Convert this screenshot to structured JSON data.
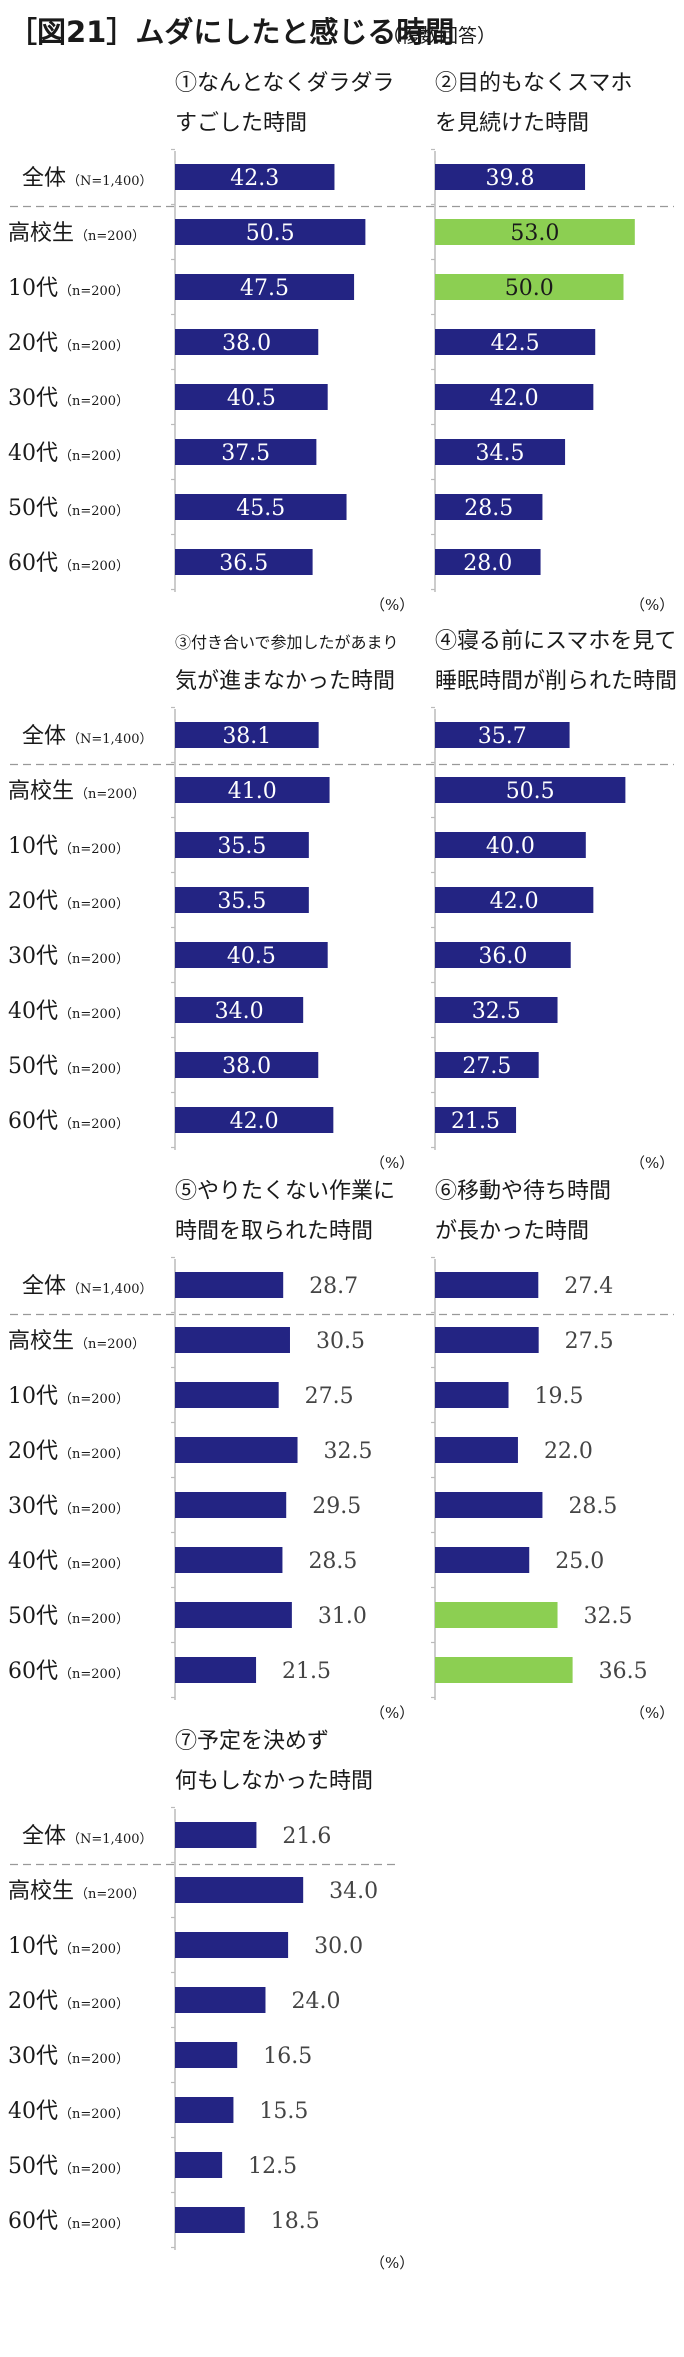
{
  "header": {
    "title": "［図21］ムダにしたと感じる時間",
    "subtitle": "（複数回答）"
  },
  "colors": {
    "bar": "#232483",
    "highlight": "#8CCF52",
    "axis": "#bbbbbb",
    "divider": "#999999"
  },
  "unit_label": "（%）",
  "categories": [
    {
      "main": "全体",
      "n": "（N=1,400）"
    },
    {
      "main": "高校生",
      "n": "（n=200）"
    },
    {
      "main": "10代",
      "n": "（n=200）"
    },
    {
      "main": "20代",
      "n": "（n=200）"
    },
    {
      "main": "30代",
      "n": "（n=200）"
    },
    {
      "main": "40代",
      "n": "（n=200）"
    },
    {
      "main": "50代",
      "n": "（n=200）"
    },
    {
      "main": "60代",
      "n": "（n=200）"
    }
  ],
  "chart_data": [
    {
      "type": "bar",
      "title_lines": [
        "①なんとなくダラダラ",
        "すごした時間"
      ],
      "categories": [
        "全体",
        "高校生",
        "10代",
        "20代",
        "30代",
        "40代",
        "50代",
        "60代"
      ],
      "values": [
        42.3,
        50.5,
        47.5,
        38.0,
        40.5,
        37.5,
        45.5,
        36.5
      ],
      "labels": [
        "42.3",
        "50.5",
        "47.5",
        "38.0",
        "40.5",
        "37.5",
        "45.5",
        "36.5"
      ],
      "highlight": [
        false,
        false,
        false,
        false,
        false,
        false,
        false,
        false
      ],
      "label_position": "inside",
      "unit": "%"
    },
    {
      "type": "bar",
      "title_lines": [
        "②目的もなくスマホ",
        "を見続けた時間"
      ],
      "categories": [
        "全体",
        "高校生",
        "10代",
        "20代",
        "30代",
        "40代",
        "50代",
        "60代"
      ],
      "values": [
        39.8,
        53.0,
        50.0,
        42.5,
        42.0,
        34.5,
        28.5,
        28.0
      ],
      "labels": [
        "39.8",
        "53.0",
        "50.0",
        "42.5",
        "42.0",
        "34.5",
        "28.5",
        "28.0"
      ],
      "highlight": [
        false,
        true,
        true,
        false,
        false,
        false,
        false,
        false
      ],
      "label_position": "inside",
      "unit": "%"
    },
    {
      "type": "bar",
      "title_lines": [
        "③付き合いで参加したがあまり",
        "気が進まなかった時間"
      ],
      "categories": [
        "全体",
        "高校生",
        "10代",
        "20代",
        "30代",
        "40代",
        "50代",
        "60代"
      ],
      "values": [
        38.1,
        41.0,
        35.5,
        35.5,
        40.5,
        34.0,
        38.0,
        42.0
      ],
      "labels": [
        "38.1",
        "41.0",
        "35.5",
        "35.5",
        "40.5",
        "34.0",
        "38.0",
        "42.0"
      ],
      "highlight": [
        false,
        false,
        false,
        false,
        false,
        false,
        false,
        false
      ],
      "label_position": "inside",
      "unit": "%"
    },
    {
      "type": "bar",
      "title_lines": [
        "④寝る前にスマホを見て",
        "睡眠時間が削られた時間"
      ],
      "categories": [
        "全体",
        "高校生",
        "10代",
        "20代",
        "30代",
        "40代",
        "50代",
        "60代"
      ],
      "values": [
        35.7,
        50.5,
        40.0,
        42.0,
        36.0,
        32.5,
        27.5,
        21.5
      ],
      "labels": [
        "35.7",
        "50.5",
        "40.0",
        "42.0",
        "36.0",
        "32.5",
        "27.5",
        "21.5"
      ],
      "highlight": [
        false,
        false,
        false,
        false,
        false,
        false,
        false,
        false
      ],
      "label_position": "inside",
      "unit": "%"
    },
    {
      "type": "bar",
      "title_lines": [
        "⑤やりたくない作業に",
        "時間を取られた時間"
      ],
      "categories": [
        "全体",
        "高校生",
        "10代",
        "20代",
        "30代",
        "40代",
        "50代",
        "60代"
      ],
      "values": [
        28.7,
        30.5,
        27.5,
        32.5,
        29.5,
        28.5,
        31.0,
        21.5
      ],
      "labels": [
        "28.7",
        "30.5",
        "27.5",
        "32.5",
        "29.5",
        "28.5",
        "31.0",
        "21.5"
      ],
      "highlight": [
        false,
        false,
        false,
        false,
        false,
        false,
        false,
        false
      ],
      "label_position": "outside",
      "unit": "%"
    },
    {
      "type": "bar",
      "title_lines": [
        "⑥移動や待ち時間",
        "が長かった時間"
      ],
      "categories": [
        "全体",
        "高校生",
        "10代",
        "20代",
        "30代",
        "40代",
        "50代",
        "60代"
      ],
      "values": [
        27.4,
        27.5,
        19.5,
        22.0,
        28.5,
        25.0,
        32.5,
        36.5
      ],
      "labels": [
        "27.4",
        "27.5",
        "19.5",
        "22.0",
        "28.5",
        "25.0",
        "32.5",
        "36.5"
      ],
      "highlight": [
        false,
        false,
        false,
        false,
        false,
        false,
        true,
        true
      ],
      "label_position": "outside",
      "unit": "%"
    },
    {
      "type": "bar",
      "title_lines": [
        "⑦予定を決めず",
        "何もしなかった時間"
      ],
      "categories": [
        "全体",
        "高校生",
        "10代",
        "20代",
        "30代",
        "40代",
        "50代",
        "60代"
      ],
      "values": [
        21.6,
        34.0,
        30.0,
        24.0,
        16.5,
        15.5,
        12.5,
        18.5
      ],
      "labels": [
        "21.6",
        "34.0",
        "30.0",
        "24.0",
        "16.5",
        "15.5",
        "12.5",
        "18.5"
      ],
      "highlight": [
        false,
        false,
        false,
        false,
        false,
        false,
        false,
        false
      ],
      "label_position": "outside",
      "unit": "%"
    }
  ]
}
